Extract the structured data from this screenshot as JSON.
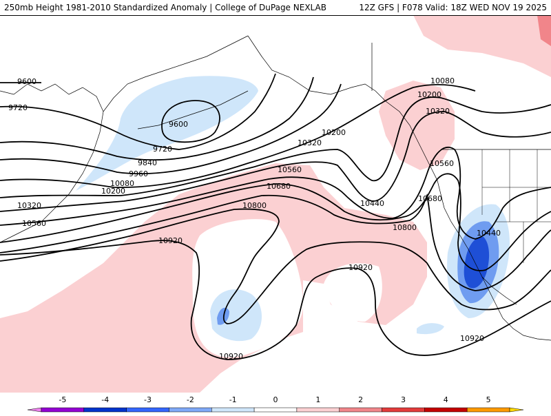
{
  "header": {
    "title": "250mb Height 1981-2010 Standardized Anomaly | College of DuPage NEXLAB",
    "run_info": "12Z GFS | F078 Valid: 18Z WED NOV 19 2025"
  },
  "colors": {
    "neg_anom_light": "#cfe6fa",
    "neg_anom_mid": "#6f9cf0",
    "neg_anom_dark": "#1e4fd6",
    "pos_anom_light": "#fbd0d2",
    "pos_anom_mid": "#f1858a",
    "contour": "#000000",
    "coastline": "#000000"
  },
  "contour_labels": [
    "9600",
    "9720",
    "9840",
    "9960",
    "10080",
    "10200",
    "10320",
    "10440",
    "10560",
    "10680",
    "10800",
    "10920"
  ],
  "colorbar": {
    "labels": [
      "-5",
      "-4",
      "-3",
      "-2",
      "-1",
      "0",
      "1",
      "2",
      "3",
      "4",
      "5"
    ],
    "colors": [
      "#ee82ee",
      "#9400d3",
      "#0033cc",
      "#3366ff",
      "#7fa9f7",
      "#cfe6fa",
      "#ffffff",
      "#fbd0d2",
      "#f1858a",
      "#e33b3b",
      "#c40000",
      "#ff9a00",
      "#ffd800"
    ]
  }
}
